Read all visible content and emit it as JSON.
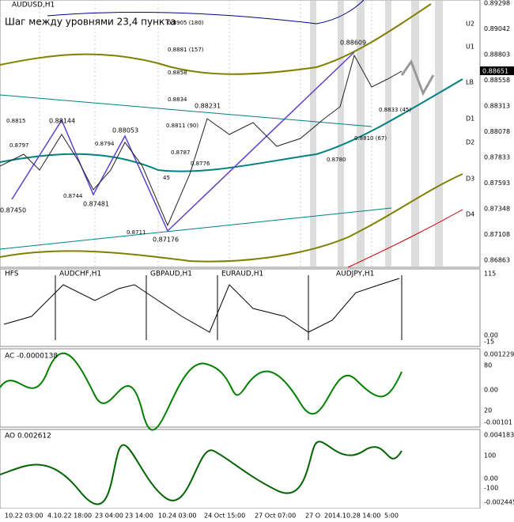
{
  "main": {
    "symbol": "AUDUSD,H1",
    "caption": "Шаг между уровнями 23,4 пункта",
    "price_axis": [
      "0.89298",
      "0.89042",
      "0.88803",
      "0.88558",
      "0.88313",
      "0.88078",
      "0.87833",
      "0.87593",
      "0.87348",
      "0.87108",
      "0.86863"
    ],
    "current_price": "0.88651",
    "levels": [
      "U2",
      "U1",
      "LB",
      "D1",
      "D2",
      "D3",
      "D4"
    ],
    "annotations": [
      "0.8905 (180)",
      "0.8881 (157)",
      "0.8858",
      "0.8834",
      "0.8811 (90)",
      "0.8787",
      "0.8776",
      "0.8780",
      "0.8810 (67)",
      "0.8833 (45)",
      "0.8815",
      "0.8797",
      "0.8794",
      "0.8744",
      "0.8711",
      "45"
    ],
    "extremes": [
      "0.88609",
      "0.88231",
      "0.88144",
      "0.88053",
      "0.87450",
      "0.87481",
      "0.87176"
    ]
  },
  "hfs": {
    "label": "HFS",
    "pairs": [
      "AUDCHF,H1",
      "GBPAUD,H1",
      "EURAUD,H1",
      "AUDJPY,H1"
    ],
    "axis": [
      "115",
      "0.00",
      "-15"
    ]
  },
  "ac": {
    "label": "AC -0.0000138",
    "axis": [
      "0.0012290",
      "80",
      "0.00",
      "20",
      "-0.00101"
    ]
  },
  "ao": {
    "label": "AO 0.002612",
    "axis": [
      "0.0041830",
      "100",
      "0.00",
      "-100",
      "-0.0024450"
    ]
  },
  "time_axis": [
    "10.22 03:00",
    "4.10.22 18:00",
    "23 04:00",
    "23 14:00",
    "10.24 03:00",
    "24 Oct 15:00",
    "27 Oct 07:00",
    "27 O",
    "2014.10.28 14:00",
    "5:00"
  ]
}
